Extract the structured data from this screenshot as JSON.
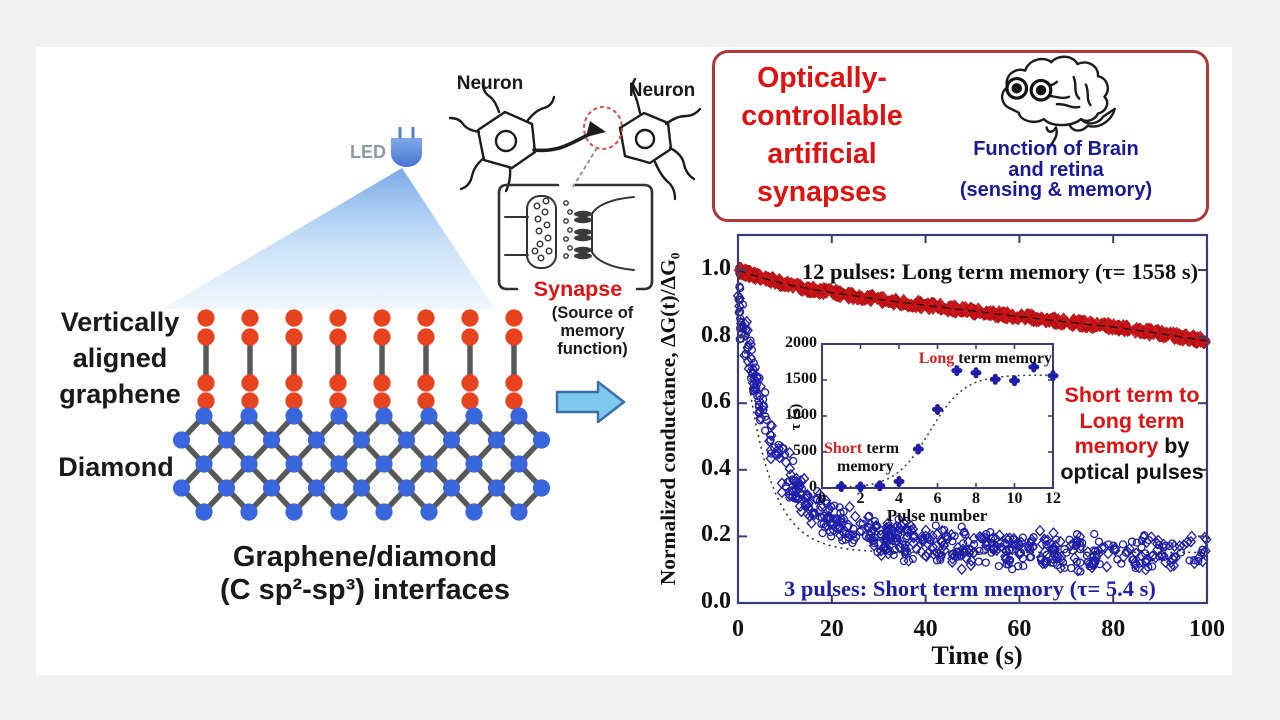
{
  "left_panel": {
    "led_label": "LED",
    "graphene_lines": [
      "Vertically",
      "aligned",
      "graphene"
    ],
    "diamond_label": "Diamond",
    "caption_lines": [
      "Graphene/diamond",
      "(C sp²-sp³) interfaces"
    ]
  },
  "neurons": {
    "left_label": "Neuron",
    "right_label": "Neuron",
    "synapse_label": "Synapse",
    "synapse_sub": [
      "(Source of",
      "memory",
      "function)"
    ]
  },
  "header_box": {
    "title_lines": [
      "Optically-",
      "controllable",
      "artificial",
      "synapses"
    ],
    "subtitle_lines": [
      "Function of Brain",
      "and retina",
      "(sensing & memory)"
    ],
    "title_color": "#e01111",
    "subtitle_color": "#18189a",
    "border_color": "#b53636"
  },
  "side_note": {
    "line1": "Short term to",
    "line2": "Long term",
    "line3_red": "memory",
    "line3_black": "  by",
    "line4": "optical pulses"
  },
  "chart_data": [
    {
      "type": "scatter",
      "title": "",
      "xlabel": "Time (s)",
      "ylabel": "Normalized conductance, ΔG(t)/ΔG₀",
      "xlim": [
        0,
        100
      ],
      "ylim": [
        0.0,
        1.1
      ],
      "xticks": [
        0,
        20,
        40,
        60,
        80,
        100
      ],
      "yticks": [
        1.0,
        0.8,
        0.6,
        0.4,
        0.2,
        0.0
      ],
      "grid": false,
      "axis_color": "#3c3c74",
      "series": [
        {
          "name": "12 pulses decay",
          "label": "12 pulses:  Long term memory (τ= 1558 s)",
          "tau_s": 1558,
          "color": "#cf1418",
          "marker": "filled-diamond",
          "n_points": 760,
          "scatter_jitter": 0.014,
          "trend": [
            [
              0,
              1.0
            ],
            [
              2,
              0.989
            ],
            [
              5,
              0.977
            ],
            [
              10,
              0.958
            ],
            [
              15,
              0.944
            ],
            [
              20,
              0.932
            ],
            [
              25,
              0.922
            ],
            [
              30,
              0.912
            ],
            [
              35,
              0.903
            ],
            [
              40,
              0.894
            ],
            [
              45,
              0.885
            ],
            [
              50,
              0.877
            ],
            [
              55,
              0.868
            ],
            [
              60,
              0.86
            ],
            [
              65,
              0.852
            ],
            [
              70,
              0.844
            ],
            [
              75,
              0.836
            ],
            [
              80,
              0.829
            ],
            [
              85,
              0.819
            ],
            [
              90,
              0.809
            ],
            [
              95,
              0.798
            ],
            [
              100,
              0.787
            ]
          ]
        },
        {
          "name": "3 pulses decay",
          "label": "3 pulses:  Short term memory (τ= 5.4 s)",
          "tau_s": 5.4,
          "color": "#1e1ea9",
          "marker": "open-diamond-and-circle",
          "n_points": 620,
          "scatter_jitter": 0.05,
          "trend": [
            [
              0,
              0.9
            ],
            [
              1,
              0.835
            ],
            [
              2,
              0.77
            ],
            [
              3,
              0.71
            ],
            [
              4,
              0.65
            ],
            [
              5,
              0.595
            ],
            [
              6,
              0.545
            ],
            [
              7,
              0.5
            ],
            [
              8,
              0.46
            ],
            [
              10,
              0.4
            ],
            [
              12,
              0.355
            ],
            [
              15,
              0.305
            ],
            [
              18,
              0.272
            ],
            [
              20,
              0.252
            ],
            [
              25,
              0.218
            ],
            [
              30,
              0.196
            ],
            [
              35,
              0.185
            ],
            [
              40,
              0.177
            ],
            [
              50,
              0.167
            ],
            [
              60,
              0.161
            ],
            [
              70,
              0.156
            ],
            [
              80,
              0.152
            ],
            [
              90,
              0.149
            ],
            [
              100,
              0.147
            ]
          ],
          "fit": {
            "shape": "exponential",
            "baseline": 0.152,
            "amplitude": 0.78,
            "tau": 5.4
          }
        }
      ]
    },
    {
      "type": "scatter",
      "title": "",
      "xlabel": "Pulse number",
      "ylabel": "τ (s)",
      "xlim": [
        0,
        12
      ],
      "ylim": [
        0,
        2000
      ],
      "xticks": [
        0,
        2,
        4,
        6,
        8,
        10,
        12
      ],
      "yticks": [
        0,
        500,
        1000,
        1500,
        2000
      ],
      "grid": false,
      "axis_color": "#3c3c74",
      "point_color": "#1e1ea9",
      "x": [
        1,
        2,
        3,
        4,
        5,
        6,
        7,
        8,
        9,
        10,
        11,
        12
      ],
      "y": [
        20,
        15,
        30,
        90,
        540,
        1090,
        1630,
        1600,
        1510,
        1490,
        1680,
        1560
      ],
      "fit": {
        "shape": "sigmoid",
        "max": 1570,
        "midpoint": 5.6,
        "width": 0.9
      },
      "annotations": {
        "long_red": "Long",
        "long_black": " term memory",
        "short_red": "Short",
        "short_black": " term",
        "short_line2": "memory"
      }
    }
  ]
}
